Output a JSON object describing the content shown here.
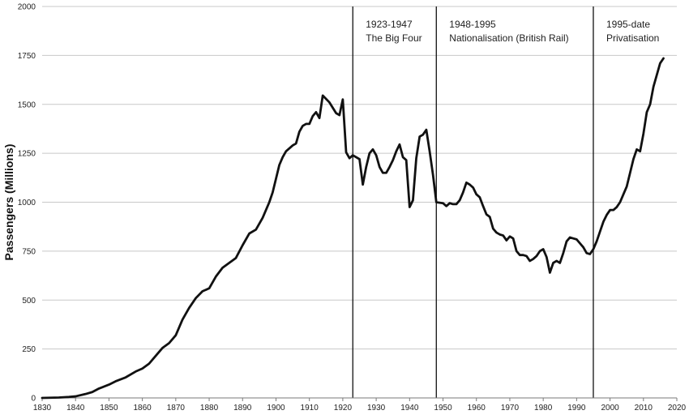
{
  "chart_data": {
    "type": "line",
    "title": "",
    "xlabel": "",
    "ylabel": "Passengers (Millions)",
    "xlim": [
      1830,
      2020
    ],
    "ylim": [
      0,
      2000
    ],
    "x_ticks": [
      1830,
      1840,
      1850,
      1860,
      1870,
      1880,
      1890,
      1900,
      1910,
      1920,
      1930,
      1940,
      1950,
      1960,
      1970,
      1980,
      1990,
      2000,
      2010,
      2020
    ],
    "y_ticks": [
      0,
      250,
      500,
      750,
      1000,
      1250,
      1500,
      1750,
      2000
    ],
    "grid": "horizontal",
    "line_color": "#111111",
    "grid_color": "#c8c8c8",
    "eras": [
      {
        "boundary_year": 1923,
        "label_line1": "1923-1947",
        "label_line2": "The Big Four"
      },
      {
        "boundary_year": 1948,
        "label_line1": "1948-1995",
        "label_line2": "Nationalisation (British Rail)"
      },
      {
        "boundary_year": 1995,
        "label_line1": "1995-date",
        "label_line2": "Privatisation"
      }
    ],
    "series": [
      {
        "points": [
          [
            1830,
            0
          ],
          [
            1835,
            2
          ],
          [
            1838,
            5
          ],
          [
            1840,
            8
          ],
          [
            1843,
            20
          ],
          [
            1845,
            30
          ],
          [
            1847,
            48
          ],
          [
            1850,
            68
          ],
          [
            1852,
            85
          ],
          [
            1855,
            105
          ],
          [
            1858,
            135
          ],
          [
            1860,
            150
          ],
          [
            1862,
            175
          ],
          [
            1864,
            215
          ],
          [
            1866,
            255
          ],
          [
            1868,
            280
          ],
          [
            1870,
            320
          ],
          [
            1872,
            400
          ],
          [
            1874,
            460
          ],
          [
            1876,
            510
          ],
          [
            1878,
            545
          ],
          [
            1880,
            560
          ],
          [
            1882,
            620
          ],
          [
            1884,
            665
          ],
          [
            1886,
            690
          ],
          [
            1888,
            715
          ],
          [
            1890,
            780
          ],
          [
            1892,
            840
          ],
          [
            1894,
            860
          ],
          [
            1896,
            920
          ],
          [
            1898,
            1000
          ],
          [
            1899,
            1050
          ],
          [
            1900,
            1120
          ],
          [
            1901,
            1190
          ],
          [
            1902,
            1230
          ],
          [
            1903,
            1260
          ],
          [
            1905,
            1290
          ],
          [
            1906,
            1300
          ],
          [
            1907,
            1360
          ],
          [
            1908,
            1390
          ],
          [
            1909,
            1400
          ],
          [
            1910,
            1400
          ],
          [
            1911,
            1440
          ],
          [
            1912,
            1460
          ],
          [
            1913,
            1430
          ],
          [
            1914,
            1545
          ],
          [
            1916,
            1510
          ],
          [
            1918,
            1455
          ],
          [
            1919,
            1445
          ],
          [
            1920,
            1525
          ],
          [
            1921,
            1255
          ],
          [
            1922,
            1225
          ],
          [
            1923,
            1240
          ],
          [
            1925,
            1220
          ],
          [
            1926,
            1090
          ],
          [
            1927,
            1180
          ],
          [
            1928,
            1250
          ],
          [
            1929,
            1270
          ],
          [
            1930,
            1240
          ],
          [
            1931,
            1180
          ],
          [
            1932,
            1150
          ],
          [
            1933,
            1150
          ],
          [
            1934,
            1180
          ],
          [
            1935,
            1215
          ],
          [
            1936,
            1260
          ],
          [
            1937,
            1295
          ],
          [
            1938,
            1230
          ],
          [
            1939,
            1215
          ],
          [
            1940,
            975
          ],
          [
            1941,
            1010
          ],
          [
            1942,
            1225
          ],
          [
            1943,
            1335
          ],
          [
            1944,
            1345
          ],
          [
            1945,
            1370
          ],
          [
            1946,
            1260
          ],
          [
            1947,
            1140
          ],
          [
            1948,
            1000
          ],
          [
            1950,
            995
          ],
          [
            1951,
            980
          ],
          [
            1952,
            995
          ],
          [
            1953,
            990
          ],
          [
            1954,
            990
          ],
          [
            1955,
            1010
          ],
          [
            1956,
            1050
          ],
          [
            1957,
            1100
          ],
          [
            1958,
            1090
          ],
          [
            1959,
            1075
          ],
          [
            1960,
            1040
          ],
          [
            1961,
            1025
          ],
          [
            1962,
            980
          ],
          [
            1963,
            938
          ],
          [
            1964,
            925
          ],
          [
            1965,
            865
          ],
          [
            1966,
            845
          ],
          [
            1967,
            835
          ],
          [
            1968,
            830
          ],
          [
            1969,
            805
          ],
          [
            1970,
            825
          ],
          [
            1971,
            815
          ],
          [
            1972,
            750
          ],
          [
            1973,
            730
          ],
          [
            1974,
            730
          ],
          [
            1975,
            725
          ],
          [
            1976,
            700
          ],
          [
            1977,
            710
          ],
          [
            1978,
            725
          ],
          [
            1979,
            750
          ],
          [
            1980,
            760
          ],
          [
            1981,
            720
          ],
          [
            1982,
            640
          ],
          [
            1983,
            690
          ],
          [
            1984,
            700
          ],
          [
            1985,
            690
          ],
          [
            1986,
            740
          ],
          [
            1987,
            800
          ],
          [
            1988,
            820
          ],
          [
            1989,
            815
          ],
          [
            1990,
            810
          ],
          [
            1991,
            790
          ],
          [
            1992,
            770
          ],
          [
            1993,
            740
          ],
          [
            1994,
            735
          ],
          [
            1995,
            760
          ],
          [
            1996,
            800
          ],
          [
            1997,
            850
          ],
          [
            1998,
            900
          ],
          [
            1999,
            935
          ],
          [
            2000,
            960
          ],
          [
            2001,
            960
          ],
          [
            2002,
            975
          ],
          [
            2003,
            1000
          ],
          [
            2004,
            1040
          ],
          [
            2005,
            1080
          ],
          [
            2006,
            1150
          ],
          [
            2007,
            1220
          ],
          [
            2008,
            1270
          ],
          [
            2009,
            1260
          ],
          [
            2010,
            1350
          ],
          [
            2011,
            1460
          ],
          [
            2012,
            1500
          ],
          [
            2013,
            1590
          ],
          [
            2014,
            1650
          ],
          [
            2015,
            1710
          ],
          [
            2016,
            1735
          ]
        ]
      }
    ]
  }
}
